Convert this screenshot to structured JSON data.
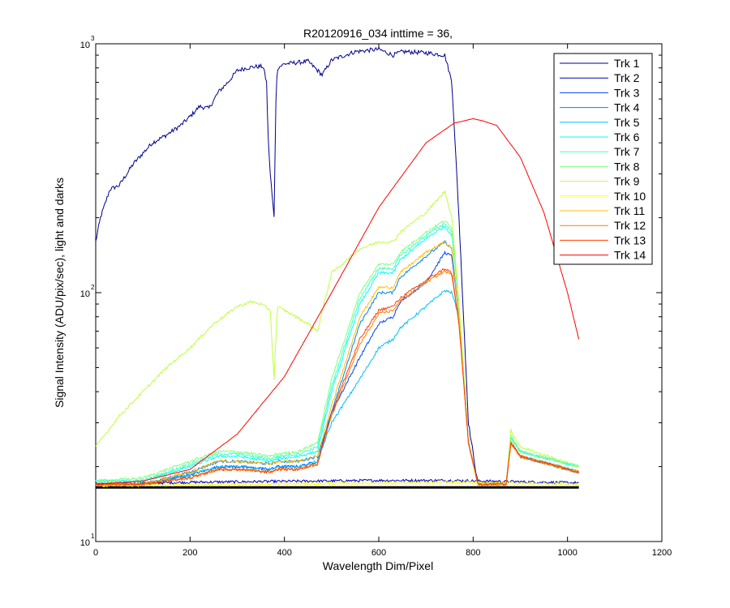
{
  "chart_data": {
    "type": "line",
    "title": "R20120916_034 inttime = 36,",
    "xlabel": "Wavelength Dim/Pixel",
    "ylabel": "Signal Intensity (ADU/pix/sec), light and darks",
    "xlim": [
      0,
      1200
    ],
    "ylim": [
      10,
      1000
    ],
    "yscale": "log",
    "xticks": [
      0,
      200,
      400,
      600,
      800,
      1000,
      1200
    ],
    "xtick_labels": [
      "0",
      "200",
      "400",
      "600",
      "800",
      "1000",
      "1200"
    ],
    "yticks": [
      10,
      100,
      1000
    ],
    "ytick_labels": [
      {
        "base": "10",
        "exponent": "1"
      },
      {
        "base": "10",
        "exponent": "2"
      },
      {
        "base": "10",
        "exponent": "3"
      }
    ],
    "grid": false,
    "legend_position": "top-right",
    "series": [
      {
        "name": "Trk 1",
        "color": "#00008f",
        "x": [
          0,
          10,
          30,
          50,
          80,
          120,
          150,
          180,
          200,
          220,
          240,
          260,
          280,
          300,
          320,
          340,
          355,
          362,
          366,
          370,
          378,
          382,
          385,
          400,
          450,
          480,
          500,
          550,
          600,
          630,
          650,
          700,
          740,
          755,
          770,
          790,
          810
        ],
        "values": [
          160,
          200,
          260,
          270,
          330,
          400,
          430,
          470,
          510,
          560,
          550,
          640,
          700,
          780,
          800,
          810,
          810,
          700,
          400,
          300,
          200,
          600,
          800,
          830,
          850,
          750,
          860,
          930,
          950,
          900,
          930,
          920,
          900,
          700,
          200,
          30,
          17
        ]
      },
      {
        "name": "Trk 2",
        "color": "#0000c0",
        "x": [
          0,
          200,
          600,
          750,
          1024
        ],
        "values": [
          17,
          17.3,
          17.6,
          17.6,
          17.2
        ]
      },
      {
        "name": "Trk 3",
        "color": "#0040ff",
        "x": [
          0,
          100,
          200,
          260,
          300,
          370,
          385,
          430,
          470,
          500,
          560,
          600,
          630,
          645,
          700,
          740,
          755,
          770,
          790,
          810,
          870,
          880,
          900,
          1024
        ],
        "values": [
          17,
          17,
          18.5,
          20,
          20,
          19.5,
          20,
          20,
          21,
          33,
          55,
          75,
          80,
          92,
          110,
          145,
          140,
          80,
          25,
          17,
          17,
          25,
          22,
          19
        ]
      },
      {
        "name": "Trk 4",
        "color": "#0080ff",
        "x": [
          0,
          100,
          200,
          260,
          300,
          370,
          385,
          430,
          470,
          500,
          560,
          600,
          630,
          645,
          700,
          740,
          755,
          770,
          790,
          810,
          870,
          880,
          900,
          1024
        ],
        "values": [
          17,
          17,
          19,
          21,
          21,
          20.5,
          21,
          21,
          22,
          33,
          75,
          100,
          100,
          115,
          140,
          160,
          150,
          80,
          25,
          17,
          17,
          25,
          22,
          19
        ]
      },
      {
        "name": "Trk 5",
        "color": "#00bfff",
        "x": [
          0,
          100,
          200,
          260,
          300,
          370,
          385,
          430,
          470,
          500,
          560,
          600,
          630,
          645,
          700,
          740,
          755,
          770,
          790,
          810,
          870,
          880,
          900,
          1024
        ],
        "values": [
          17,
          17,
          18.5,
          20,
          20,
          19.5,
          20,
          20,
          21,
          30,
          45,
          60,
          65,
          72,
          88,
          102,
          100,
          80,
          25,
          17,
          17,
          25,
          22,
          19
        ]
      },
      {
        "name": "Trk 6",
        "color": "#00ffff",
        "x": [
          0,
          100,
          200,
          260,
          300,
          370,
          385,
          430,
          470,
          500,
          560,
          600,
          630,
          645,
          700,
          740,
          755,
          770,
          790,
          810,
          870,
          880,
          900,
          1024
        ],
        "values": [
          17.5,
          17.5,
          20,
          22,
          22,
          21,
          21.5,
          22,
          23,
          40,
          90,
          120,
          120,
          135,
          165,
          185,
          170,
          90,
          25,
          17,
          17,
          26,
          23,
          20
        ]
      },
      {
        "name": "Trk 7",
        "color": "#40ffbf",
        "x": [
          0,
          100,
          200,
          260,
          300,
          370,
          385,
          430,
          470,
          500,
          560,
          600,
          630,
          645,
          700,
          740,
          755,
          770,
          790,
          810,
          870,
          880,
          900,
          1024
        ],
        "values": [
          17.5,
          17.5,
          20.5,
          22.5,
          22.5,
          21.5,
          22,
          22.5,
          24,
          42,
          95,
          125,
          125,
          140,
          170,
          190,
          175,
          90,
          25,
          17,
          17,
          26,
          23,
          20
        ]
      },
      {
        "name": "Trk 8",
        "color": "#80ff80",
        "x": [
          0,
          100,
          200,
          260,
          300,
          370,
          385,
          430,
          470,
          500,
          560,
          600,
          630,
          645,
          700,
          740,
          755,
          770,
          790,
          810,
          870,
          880,
          900,
          1024
        ],
        "values": [
          17.5,
          18,
          21,
          23,
          23,
          22,
          22.5,
          23,
          25,
          45,
          100,
          130,
          130,
          145,
          175,
          195,
          180,
          90,
          25,
          17,
          17,
          27,
          23,
          20
        ]
      },
      {
        "name": "Trk 9",
        "color": "#bfff40",
        "x": [
          0,
          50,
          100,
          150,
          200,
          250,
          300,
          330,
          350,
          370,
          378,
          385,
          400,
          450,
          470,
          500,
          560,
          600,
          630,
          645,
          700,
          740,
          755,
          770,
          790,
          810,
          870,
          880,
          900,
          1024
        ],
        "values": [
          24,
          32,
          40,
          50,
          60,
          75,
          88,
          92,
          90,
          85,
          45,
          88,
          85,
          75,
          70,
          120,
          150,
          160,
          160,
          175,
          210,
          255,
          200,
          90,
          25,
          17,
          17,
          28,
          24,
          20
        ]
      },
      {
        "name": "Trk 10",
        "color": "#ffff00",
        "x": [
          0,
          200,
          600,
          750,
          1024
        ],
        "values": [
          16.8,
          16.9,
          17.2,
          17.3,
          17
        ]
      },
      {
        "name": "Trk 11",
        "color": "#ffbf00",
        "x": [
          0,
          100,
          200,
          260,
          300,
          370,
          385,
          430,
          470,
          500,
          560,
          600,
          630,
          645,
          700,
          740,
          755,
          770,
          790,
          810,
          870,
          880,
          900,
          1024
        ],
        "values": [
          17,
          17,
          19,
          21,
          21,
          20.5,
          21,
          21,
          22,
          35,
          80,
          105,
          105,
          120,
          145,
          160,
          150,
          80,
          25,
          17,
          17,
          25,
          22,
          19
        ]
      },
      {
        "name": "Trk 12",
        "color": "#ff8000",
        "x": [
          0,
          100,
          200,
          260,
          300,
          370,
          385,
          430,
          470,
          500,
          560,
          600,
          630,
          645,
          700,
          740,
          755,
          770,
          790,
          810,
          870,
          880,
          900,
          1024
        ],
        "values": [
          17,
          17,
          18,
          19.5,
          19.5,
          19,
          19.5,
          19.5,
          20.5,
          32,
          62,
          82,
          85,
          92,
          110,
          122,
          118,
          75,
          25,
          17,
          17,
          25,
          22,
          19
        ]
      },
      {
        "name": "Trk 13",
        "color": "#ff4000",
        "x": [
          0,
          100,
          200,
          260,
          300,
          370,
          385,
          430,
          470,
          500,
          560,
          600,
          630,
          645,
          700,
          740,
          755,
          770,
          790,
          810,
          870,
          880,
          900,
          1024
        ],
        "values": [
          17,
          17,
          18,
          19.5,
          19.5,
          19,
          19.5,
          19.5,
          20.5,
          33,
          65,
          85,
          88,
          95,
          112,
          125,
          120,
          75,
          25,
          17,
          17,
          25,
          22,
          19
        ]
      },
      {
        "name": "Trk 14",
        "color": "#ff0000",
        "x": [
          0,
          100,
          200,
          300,
          400,
          500,
          600,
          700,
          760,
          800,
          820,
          850,
          900,
          950,
          1000,
          1024
        ],
        "values": [
          17,
          17.5,
          19.5,
          27,
          46,
          100,
          220,
          400,
          480,
          500,
          490,
          470,
          350,
          210,
          100,
          65
        ]
      }
    ],
    "extra_curves": [
      {
        "label": "dark-baseline",
        "color": "#000000",
        "x": [
          0,
          1024
        ],
        "values": [
          16.5,
          16.5
        ]
      }
    ]
  }
}
